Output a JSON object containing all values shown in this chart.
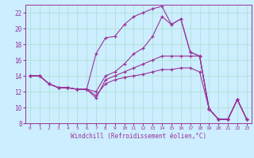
{
  "xlabel": "Windchill (Refroidissement éolien,°C)",
  "bg_color": "#cceeff",
  "line_color": "#993399",
  "grid_color": "#aaddcc",
  "xlim": [
    -0.5,
    23.5
  ],
  "ylim": [
    8,
    23
  ],
  "yticks": [
    8,
    10,
    12,
    14,
    16,
    18,
    20,
    22
  ],
  "xticks": [
    0,
    1,
    2,
    3,
    4,
    5,
    6,
    7,
    8,
    9,
    10,
    11,
    12,
    13,
    14,
    15,
    16,
    17,
    18,
    19,
    20,
    21,
    22,
    23
  ],
  "lines": [
    {
      "x": [
        0,
        1,
        2,
        3,
        4,
        5,
        6,
        7,
        8,
        9,
        10,
        11,
        12,
        13,
        14,
        15,
        16,
        17,
        18,
        19,
        20,
        21,
        22,
        23
      ],
      "y": [
        14,
        14,
        13,
        12.5,
        12.5,
        12.3,
        12.3,
        16.8,
        18.8,
        19.0,
        20.5,
        21.5,
        22.0,
        22.5,
        22.8,
        20.5,
        21.2,
        17.0,
        16.5,
        9.8,
        8.5,
        8.5,
        11.0,
        8.5
      ]
    },
    {
      "x": [
        0,
        1,
        2,
        3,
        4,
        5,
        6,
        7,
        8,
        9,
        10,
        11,
        12,
        13,
        14,
        15,
        16,
        17,
        18,
        19,
        20,
        21,
        22,
        23
      ],
      "y": [
        14,
        14,
        13,
        12.5,
        12.5,
        12.3,
        12.3,
        12.0,
        14.0,
        14.5,
        15.5,
        16.8,
        17.5,
        19.0,
        21.5,
        20.5,
        21.2,
        17.0,
        16.5,
        9.8,
        8.5,
        8.5,
        11.0,
        8.5
      ]
    },
    {
      "x": [
        0,
        1,
        2,
        3,
        4,
        5,
        6,
        7,
        8,
        9,
        10,
        11,
        12,
        13,
        14,
        15,
        16,
        17,
        18,
        19,
        20,
        21,
        22,
        23
      ],
      "y": [
        14,
        14,
        13,
        12.5,
        12.5,
        12.3,
        12.3,
        11.2,
        13.5,
        14.0,
        14.5,
        15.0,
        15.5,
        16.0,
        16.5,
        16.5,
        16.5,
        16.5,
        16.5,
        9.8,
        8.5,
        8.5,
        11.0,
        8.5
      ]
    },
    {
      "x": [
        0,
        1,
        2,
        3,
        4,
        5,
        6,
        7,
        8,
        9,
        10,
        11,
        12,
        13,
        14,
        15,
        16,
        17,
        18,
        19,
        20,
        21,
        22,
        23
      ],
      "y": [
        14,
        14,
        13,
        12.5,
        12.5,
        12.3,
        12.3,
        11.5,
        13.0,
        13.5,
        13.8,
        14.0,
        14.2,
        14.5,
        14.8,
        14.8,
        15.0,
        15.0,
        14.5,
        9.8,
        8.5,
        8.5,
        11.0,
        8.5
      ]
    }
  ]
}
